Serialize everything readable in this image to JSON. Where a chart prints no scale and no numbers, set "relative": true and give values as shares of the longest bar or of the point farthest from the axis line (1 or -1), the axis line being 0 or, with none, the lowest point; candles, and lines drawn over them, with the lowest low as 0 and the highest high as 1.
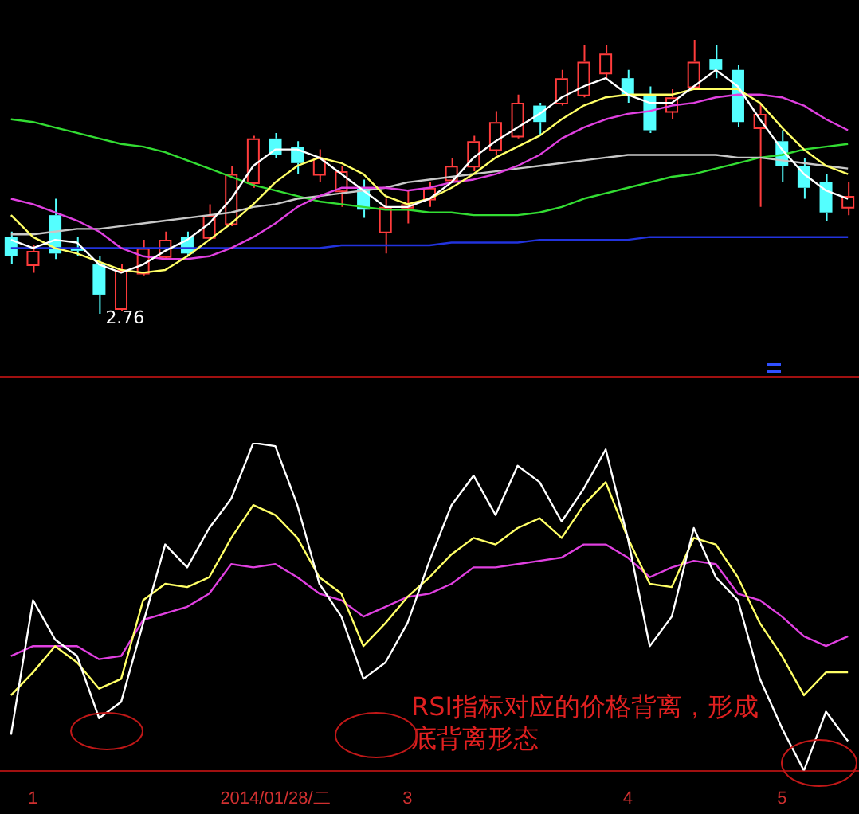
{
  "chart_data": [
    {
      "type": "candlestick",
      "relative": true,
      "legend": false,
      "categories": [
        null,
        null,
        null,
        null,
        null,
        null,
        null,
        null,
        null,
        null,
        null,
        null,
        null,
        null,
        null,
        null,
        null,
        null,
        null,
        null,
        null,
        null,
        null,
        null,
        null,
        null,
        null,
        null,
        null,
        null,
        null,
        null,
        null,
        null,
        null,
        null,
        null,
        null,
        null
      ],
      "ohlc": [
        [
          0.28,
          0.3,
          0.18,
          0.21
        ],
        [
          0.18,
          0.25,
          0.15,
          0.23
        ],
        [
          0.36,
          0.42,
          0.2,
          0.22
        ],
        [
          0.24,
          0.28,
          0.21,
          0.23
        ],
        [
          0.18,
          0.21,
          0,
          0.07
        ],
        [
          0.02,
          0.18,
          0.01,
          0.16
        ],
        [
          0.15,
          0.27,
          0.14,
          0.24
        ],
        [
          0.21,
          0.3,
          0.2,
          0.27
        ],
        [
          0.28,
          0.3,
          0.21,
          0.22
        ],
        [
          0.28,
          0.4,
          0.27,
          0.36
        ],
        [
          0.33,
          0.54,
          0.32,
          0.51
        ],
        [
          0.48,
          0.65,
          0.46,
          0.64
        ],
        [
          0.64,
          0.66,
          0.57,
          0.58
        ],
        [
          0.61,
          0.63,
          0.51,
          0.55
        ],
        [
          0.51,
          0.6,
          0.48,
          0.57
        ],
        [
          0.45,
          0.54,
          0.39,
          0.52
        ],
        [
          0.46,
          0.49,
          0.35,
          0.38
        ],
        [
          0.3,
          0.42,
          0.22,
          0.39
        ],
        [
          0.39,
          0.45,
          0.33,
          0.4
        ],
        [
          0.42,
          0.48,
          0.39,
          0.46
        ],
        [
          0.49,
          0.57,
          0.48,
          0.54
        ],
        [
          0.54,
          0.65,
          0.52,
          0.63
        ],
        [
          0.6,
          0.74,
          0.58,
          0.7
        ],
        [
          0.65,
          0.8,
          0.64,
          0.77
        ],
        [
          0.76,
          0.77,
          0.65,
          0.7
        ],
        [
          0.77,
          0.89,
          0.76,
          0.86
        ],
        [
          0.8,
          0.98,
          0.79,
          0.92
        ],
        [
          0.88,
          0.98,
          0.86,
          0.95
        ],
        [
          0.86,
          0.89,
          0.77,
          0.8
        ],
        [
          0.8,
          0.83,
          0.66,
          0.67
        ],
        [
          0.74,
          0.82,
          0.71,
          0.79
        ],
        [
          0.83,
          1.0,
          0.82,
          0.92
        ],
        [
          0.93,
          0.98,
          0.86,
          0.89
        ],
        [
          0.89,
          0.91,
          0.68,
          0.7
        ],
        [
          0.68,
          0.77,
          0.39,
          0.73
        ],
        [
          0.63,
          0.67,
          0.48,
          0.54
        ],
        [
          0.54,
          0.57,
          0.42,
          0.46
        ],
        [
          0.48,
          0.51,
          0.34,
          0.37
        ],
        [
          0.39,
          0.48,
          0.36,
          0.43
        ]
      ],
      "series": [
        {
          "type": "line",
          "color": "#ffffff",
          "values": [
            0.27,
            0.24,
            0.27,
            0.26,
            0.18,
            0.15,
            0.18,
            0.23,
            0.27,
            0.33,
            0.42,
            0.54,
            0.6,
            0.6,
            0.57,
            0.51,
            0.45,
            0.39,
            0.39,
            0.42,
            0.48,
            0.57,
            0.63,
            0.68,
            0.73,
            0.79,
            0.83,
            0.86,
            0.8,
            0.77,
            0.77,
            0.83,
            0.89,
            0.83,
            0.71,
            0.6,
            0.51,
            0.45,
            0.42
          ]
        },
        {
          "type": "line",
          "color": "#ffff66",
          "values": [
            0.36,
            0.28,
            0.24,
            0.22,
            0.19,
            0.16,
            0.15,
            0.16,
            0.21,
            0.27,
            0.33,
            0.4,
            0.48,
            0.54,
            0.57,
            0.55,
            0.51,
            0.43,
            0.4,
            0.42,
            0.46,
            0.51,
            0.57,
            0.61,
            0.65,
            0.71,
            0.76,
            0.79,
            0.8,
            0.8,
            0.8,
            0.82,
            0.82,
            0.82,
            0.77,
            0.68,
            0.6,
            0.54,
            0.51
          ]
        },
        {
          "type": "line",
          "color": "#e040e0",
          "values": [
            0.42,
            0.4,
            0.37,
            0.34,
            0.3,
            0.24,
            0.21,
            0.2,
            0.2,
            0.21,
            0.24,
            0.28,
            0.33,
            0.39,
            0.43,
            0.46,
            0.46,
            0.46,
            0.45,
            0.46,
            0.48,
            0.49,
            0.51,
            0.54,
            0.58,
            0.64,
            0.68,
            0.71,
            0.73,
            0.74,
            0.76,
            0.77,
            0.79,
            0.8,
            0.8,
            0.79,
            0.76,
            0.71,
            0.67
          ]
        },
        {
          "type": "line",
          "color": "#c8c8c8",
          "values": [
            0.29,
            0.29,
            0.3,
            0.31,
            0.31,
            0.32,
            0.33,
            0.34,
            0.35,
            0.36,
            0.37,
            0.39,
            0.4,
            0.42,
            0.43,
            0.44,
            0.45,
            0.46,
            0.48,
            0.49,
            0.5,
            0.51,
            0.52,
            0.53,
            0.54,
            0.55,
            0.56,
            0.57,
            0.58,
            0.58,
            0.58,
            0.58,
            0.58,
            0.57,
            0.57,
            0.56,
            0.55,
            0.54,
            0.53
          ]
        },
        {
          "type": "line",
          "color": "#33dd33",
          "values": [
            0.71,
            0.7,
            0.68,
            0.66,
            0.64,
            0.62,
            0.61,
            0.59,
            0.56,
            0.53,
            0.5,
            0.47,
            0.45,
            0.43,
            0.41,
            0.4,
            0.39,
            0.38,
            0.38,
            0.37,
            0.37,
            0.36,
            0.36,
            0.36,
            0.37,
            0.39,
            0.42,
            0.44,
            0.46,
            0.48,
            0.5,
            0.51,
            0.53,
            0.55,
            0.57,
            0.58,
            0.6,
            0.61,
            0.62
          ]
        },
        {
          "type": "line",
          "color": "#2233dd",
          "values": [
            0.24,
            0.24,
            0.24,
            0.24,
            0.24,
            0.24,
            0.24,
            0.24,
            0.24,
            0.24,
            0.24,
            0.24,
            0.24,
            0.24,
            0.24,
            0.25,
            0.25,
            0.25,
            0.25,
            0.25,
            0.26,
            0.26,
            0.26,
            0.26,
            0.27,
            0.27,
            0.27,
            0.27,
            0.27,
            0.28,
            0.28,
            0.28,
            0.28,
            0.28,
            0.28,
            0.28,
            0.28,
            0.28,
            0.28
          ]
        }
      ],
      "annotations": [
        "2.76"
      ]
    },
    {
      "type": "line",
      "relative": true,
      "legend": false,
      "categories": [
        null,
        "1",
        null,
        null,
        null,
        null,
        null,
        null,
        null,
        null,
        null,
        null,
        "2014/01/28/二",
        null,
        null,
        null,
        null,
        null,
        "3",
        null,
        null,
        null,
        null,
        null,
        null,
        null,
        null,
        null,
        "4",
        null,
        null,
        null,
        null,
        null,
        null,
        "5",
        null,
        null,
        null
      ],
      "series": [
        {
          "color": "#ffffff",
          "values": [
            0.11,
            0.52,
            0.4,
            0.35,
            0.16,
            0.21,
            0.45,
            0.69,
            0.62,
            0.74,
            0.83,
            1.0,
            0.99,
            0.81,
            0.57,
            0.47,
            0.28,
            0.33,
            0.45,
            0.64,
            0.81,
            0.9,
            0.78,
            0.93,
            0.88,
            0.76,
            0.86,
            0.98,
            0.71,
            0.38,
            0.47,
            0.74,
            0.59,
            0.52,
            0.28,
            0.13,
            0,
            0.18,
            0.09
          ]
        },
        {
          "color": "#ffff66",
          "values": [
            0.23,
            0.3,
            0.38,
            0.33,
            0.25,
            0.28,
            0.52,
            0.57,
            0.56,
            0.59,
            0.71,
            0.81,
            0.78,
            0.71,
            0.59,
            0.54,
            0.38,
            0.45,
            0.53,
            0.59,
            0.66,
            0.71,
            0.69,
            0.74,
            0.77,
            0.71,
            0.81,
            0.88,
            0.71,
            0.57,
            0.56,
            0.71,
            0.69,
            0.59,
            0.45,
            0.35,
            0.23,
            0.3,
            0.3
          ]
        },
        {
          "color": "#e040e0",
          "values": [
            0.35,
            0.38,
            0.38,
            0.38,
            0.34,
            0.35,
            0.46,
            0.48,
            0.5,
            0.54,
            0.63,
            0.62,
            0.63,
            0.59,
            0.54,
            0.52,
            0.47,
            0.5,
            0.53,
            0.54,
            0.57,
            0.62,
            0.62,
            0.63,
            0.64,
            0.65,
            0.69,
            0.69,
            0.65,
            0.59,
            0.62,
            0.64,
            0.63,
            0.54,
            0.52,
            0.47,
            0.41,
            0.38,
            0.41
          ]
        }
      ],
      "annotations": [
        "RSI指标对应的价格背离，形成底背离形态"
      ]
    }
  ]
}
